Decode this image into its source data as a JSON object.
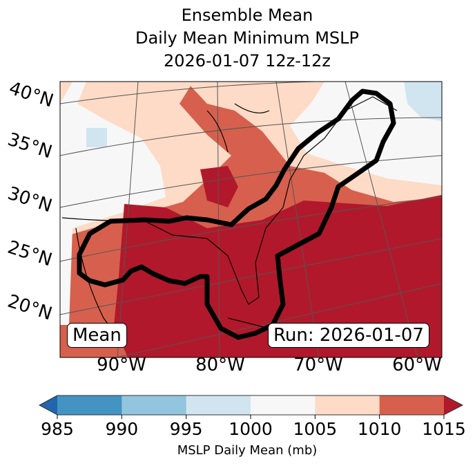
{
  "title": {
    "line1": "Ensemble Mean",
    "line2": "Daily Mean Minimum MSLP",
    "line3": "2026-01-07 12z-12z"
  },
  "map": {
    "lat_labels": [
      "40°N",
      "35°N",
      "30°N",
      "25°N",
      "20°N"
    ],
    "lon_labels": [
      "90°W",
      "80°W",
      "70°W",
      "60°W"
    ],
    "left_box": "Mean",
    "right_box": "Run: 2026-01-07"
  },
  "colorbar": {
    "ticks": [
      "985",
      "990",
      "995",
      "1000",
      "1005",
      "1010",
      "1015"
    ],
    "label": "MSLP Daily Mean (mb)",
    "colors": [
      "#4393c3",
      "#92c5de",
      "#d1e5f0",
      "#f7f7f7",
      "#fddbc7",
      "#d6604d"
    ],
    "under_color": "#2166ac",
    "over_color": "#b2182b"
  }
}
